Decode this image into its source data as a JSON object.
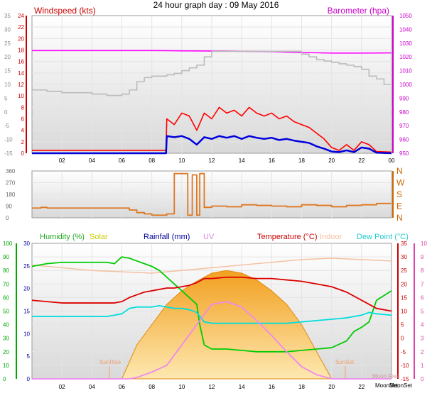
{
  "title": "24 hour graph day : 09 May 2016",
  "chart_data": [
    {
      "type": "line",
      "name": "wind-barometer",
      "x_ticks": [
        "02",
        "04",
        "06",
        "08",
        "10",
        "12",
        "14",
        "16",
        "18",
        "20",
        "22",
        "00"
      ],
      "left_axis": {
        "label": "Windspeed (kts)",
        "color": "#cc0000",
        "ticks": [
          "24",
          "22",
          "20",
          "18",
          "16",
          "14",
          "12",
          "10",
          "8",
          "6",
          "4",
          "2",
          "0"
        ],
        "range": [
          0,
          24
        ]
      },
      "outer_axis": {
        "color": "#888888",
        "ticks": [
          "35",
          "30",
          "25",
          "20",
          "15",
          "10",
          "5",
          "0",
          "-5",
          "-10",
          "-15"
        ],
        "range": [
          -15,
          35
        ]
      },
      "right_axis": {
        "label": "Barometer (hpa)",
        "color": "#cc00cc",
        "ticks": [
          "1050",
          "1040",
          "1030",
          "1020",
          "1010",
          "1000",
          "990",
          "980",
          "970",
          "960",
          "950"
        ],
        "range": [
          950,
          1050
        ]
      },
      "series": [
        {
          "color": "#ff00ff",
          "axis": "right",
          "x": [
            0,
            8,
            9,
            11,
            13,
            16,
            17,
            18,
            19,
            20,
            22,
            24
          ],
          "y": [
            1024.6,
            1024.6,
            1024.5,
            1024.3,
            1024.2,
            1023.8,
            1023.5,
            1023.2,
            1023.0,
            1022.8,
            1022.8,
            1022.9
          ]
        },
        {
          "color": "#bbbbbb",
          "axis": "outer",
          "x": [
            0,
            1,
            2,
            3,
            4,
            5,
            6,
            6.5,
            7,
            7.5,
            8,
            8.5,
            9,
            9.5,
            10,
            10.5,
            11,
            11.5,
            12,
            13,
            14,
            15,
            16,
            17,
            18,
            18.5,
            19,
            19.5,
            20,
            20.5,
            21,
            21.5,
            22,
            22.5,
            23,
            23.5,
            24
          ],
          "y": [
            8,
            7.5,
            7,
            7,
            6.5,
            6,
            6.5,
            8,
            11,
            12.5,
            13,
            13,
            13.5,
            14,
            15,
            16,
            17,
            20,
            22,
            22,
            22,
            22,
            22,
            22,
            21,
            20,
            19,
            18.5,
            18,
            17.5,
            17,
            16.5,
            15.5,
            13,
            12,
            10,
            9
          ]
        },
        {
          "color": "#ff0000",
          "axis": "left",
          "x": [
            0,
            1,
            2,
            3,
            4,
            5,
            6,
            7,
            8,
            8.95,
            9,
            9.5,
            10,
            10.5,
            11,
            11.5,
            12,
            12.5,
            13,
            13.5,
            14,
            14.5,
            15,
            15.5,
            16,
            16.5,
            17,
            17.5,
            18,
            18.5,
            19,
            19.5,
            20,
            20.5,
            21,
            21.5,
            22,
            22.5,
            23,
            24
          ],
          "y": [
            0.5,
            0.5,
            0.5,
            0.5,
            0.5,
            0.5,
            0.5,
            0.5,
            0.5,
            0.5,
            6,
            5,
            7,
            6.5,
            4,
            7,
            6,
            8,
            7,
            7.5,
            6.5,
            8,
            7,
            6.5,
            7,
            6,
            6.5,
            5.5,
            5,
            4.5,
            3.5,
            2.5,
            1,
            0.5,
            1.5,
            0.5,
            2,
            1.5,
            0.3,
            0.2
          ]
        },
        {
          "color": "#0000dd",
          "axis": "left",
          "x": [
            0,
            1,
            2,
            3,
            4,
            5,
            6,
            7,
            8,
            8.95,
            9,
            9.5,
            10,
            10.5,
            11,
            11.5,
            12,
            12.5,
            13,
            13.5,
            14,
            14.5,
            15,
            15.5,
            16,
            16.5,
            17,
            17.5,
            18,
            18.5,
            19,
            19.5,
            20,
            20.5,
            21,
            21.5,
            22,
            22.5,
            23,
            24
          ],
          "y": [
            0,
            0,
            0,
            0,
            0,
            0,
            0,
            0,
            0,
            0,
            3,
            2.8,
            3,
            2.5,
            1.5,
            2.8,
            2.5,
            3,
            2.7,
            3,
            2.5,
            3,
            2.7,
            2.5,
            2.7,
            2.3,
            2.5,
            2.2,
            2,
            1.8,
            1.2,
            0.8,
            0.3,
            0.2,
            0.5,
            0.2,
            1,
            0.8,
            0.1,
            0
          ]
        }
      ]
    },
    {
      "type": "line",
      "name": "wind-direction",
      "left_axis": {
        "ticks": [
          "360",
          "270",
          "180",
          "90",
          "0"
        ],
        "range": [
          0,
          360
        ]
      },
      "right_axis": {
        "color": "#cc6600",
        "ticks": [
          "N",
          "W",
          "S",
          "E",
          "N"
        ]
      },
      "series": [
        {
          "color": "#dd7722",
          "x": [
            0,
            0.6,
            1,
            2,
            3,
            4,
            5,
            6,
            6.5,
            7,
            7.5,
            8,
            8.5,
            9,
            9.5,
            10,
            10.4,
            10.7,
            11,
            11.2,
            11.5,
            12,
            13,
            14,
            15,
            16,
            17,
            18,
            19,
            20,
            21,
            22,
            23,
            24
          ],
          "y": [
            75,
            80,
            75,
            75,
            75,
            75,
            75,
            75,
            60,
            40,
            30,
            20,
            20,
            30,
            340,
            340,
            20,
            330,
            20,
            340,
            80,
            90,
            85,
            100,
            95,
            90,
            85,
            100,
            95,
            85,
            95,
            100,
            110,
            110
          ]
        }
      ]
    },
    {
      "type": "line",
      "name": "humidity-temperature",
      "legend": [
        {
          "label": "Humidity (%)",
          "color": "#22aa22"
        },
        {
          "label": "Solar",
          "color": "#cccc00"
        },
        {
          "label": "Rainfall (mm)",
          "color": "#000099"
        },
        {
          "label": "UV",
          "color": "#dd88dd"
        },
        {
          "label": "Temperature (°C)",
          "color": "#cc0000"
        },
        {
          "label": "Indoor",
          "color": "#f5c0a0"
        },
        {
          "label": "Dew Point (°C)",
          "color": "#22cccc"
        }
      ],
      "x_ticks": [
        "02",
        "04",
        "06",
        "08",
        "10",
        "12",
        "14",
        "16",
        "18",
        "20",
        "22"
      ],
      "humidity_axis": {
        "color": "#00aa00",
        "ticks": [
          "100",
          "90",
          "80",
          "70",
          "60",
          "50",
          "40",
          "30",
          "20",
          "10",
          "0"
        ],
        "range": [
          0,
          100
        ]
      },
      "rain_axis": {
        "color": "#000099",
        "ticks": [
          "30",
          "25",
          "20",
          "15",
          "10",
          "5",
          "0"
        ],
        "range": [
          0,
          30
        ]
      },
      "temp_axis": {
        "color": "#cc0000",
        "ticks": [
          "35",
          "30",
          "25",
          "20",
          "15",
          "10",
          "5",
          "0",
          "-5",
          "-10",
          "-15"
        ],
        "range": [
          -15,
          35
        ]
      },
      "uv_axis": {
        "color": "#dd44aa",
        "ticks": [
          "10",
          "9",
          "8",
          "7",
          "6",
          "5",
          "4",
          "3",
          "2",
          "1",
          "0"
        ],
        "range": [
          0,
          10
        ]
      },
      "annotations": [
        "SunRise",
        "SunSet",
        "Moon Rise",
        "MoonSet",
        "MoonSet"
      ],
      "series": [
        {
          "color": "#f5c0a0",
          "axis": "temp",
          "x": [
            0,
            2,
            4,
            6,
            8,
            10,
            12,
            14,
            16,
            18,
            20,
            22,
            24
          ],
          "y": [
            27,
            26,
            25,
            24.5,
            24,
            25,
            26,
            27,
            28,
            29,
            29.5,
            29,
            28.5
          ]
        },
        {
          "color": "#00cc00",
          "axis": "humidity",
          "x": [
            0,
            1,
            2,
            3,
            4,
            5,
            5.5,
            6,
            6.5,
            7,
            7.5,
            8,
            8.5,
            9,
            9.5,
            10,
            10.5,
            11,
            11.2,
            11.5,
            12,
            13,
            14,
            15,
            16,
            17,
            18,
            19,
            20,
            21,
            21.5,
            22,
            22.5,
            23,
            24
          ],
          "y": [
            83,
            85,
            86,
            86,
            86,
            86,
            85,
            90,
            89,
            87,
            85,
            83,
            80,
            75,
            70,
            65,
            60,
            55,
            40,
            25,
            22,
            22,
            21,
            20,
            20,
            20,
            21,
            22,
            23,
            28,
            35,
            38,
            42,
            58,
            65
          ]
        },
        {
          "color": "#dd0000",
          "axis": "temp",
          "x": [
            0,
            1,
            2,
            3,
            4,
            5,
            5.5,
            6,
            6.5,
            7,
            7.5,
            8,
            8.5,
            9,
            9.5,
            10,
            10.5,
            11,
            11.5,
            12,
            13,
            14,
            15,
            16,
            17,
            18,
            19,
            20,
            21,
            22,
            23,
            24
          ],
          "y": [
            14,
            13.5,
            13,
            13,
            13,
            13,
            13,
            13.5,
            15,
            16,
            17,
            17.5,
            18,
            18.5,
            18.5,
            19,
            19.5,
            20.5,
            22,
            22,
            22.5,
            22.5,
            22,
            22,
            21.5,
            21,
            20,
            19,
            17,
            14,
            11,
            10
          ]
        },
        {
          "color": "#00dddd",
          "axis": "temp",
          "x": [
            0,
            1,
            2,
            3,
            4,
            5,
            5.5,
            6,
            6.5,
            7,
            7.5,
            8,
            8.5,
            9,
            9.5,
            10,
            10.5,
            11,
            11.5,
            12,
            13,
            14,
            15,
            16,
            17,
            18,
            19,
            20,
            21,
            22,
            22.5,
            23,
            24
          ],
          "y": [
            8,
            8,
            8,
            8,
            8,
            8,
            8.5,
            9,
            11,
            11.5,
            11.5,
            11.5,
            12,
            11.5,
            11,
            11,
            10.5,
            9.5,
            6,
            5.5,
            5.5,
            5.5,
            5.5,
            5.5,
            5.5,
            6,
            6.5,
            7,
            7.5,
            8.5,
            9.5,
            9,
            8.5
          ]
        },
        {
          "color": "#ee88ee",
          "axis": "uv",
          "x": [
            0,
            6.5,
            7,
            8,
            9,
            10,
            11,
            12,
            13,
            14,
            15,
            16,
            17,
            18,
            19,
            20,
            24
          ],
          "y": [
            0,
            0,
            0.1,
            0.5,
            1,
            2.5,
            4,
            5.5,
            5.7,
            5.3,
            4.3,
            3.2,
            2,
            0.9,
            0.3,
            0,
            0
          ]
        }
      ],
      "solar": {
        "color": "#f5a623",
        "x": [
          6,
          7,
          8,
          9,
          10,
          11,
          12,
          13,
          14,
          15,
          16,
          17,
          18,
          19,
          20
        ],
        "y": [
          0,
          2.5,
          4,
          5.5,
          6.5,
          7.2,
          7.8,
          8,
          7.8,
          7.3,
          6.5,
          5.5,
          4,
          2,
          0
        ]
      }
    }
  ]
}
